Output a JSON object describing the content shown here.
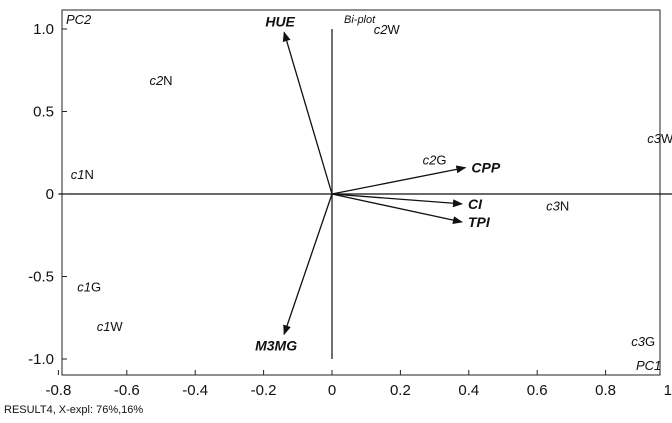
{
  "chart_data": {
    "type": "scatter",
    "title": "Bi-plot",
    "xlabel": "PC1",
    "ylabel": "PC2",
    "xlim": [
      -0.9,
      1.02
    ],
    "ylim": [
      -1.1,
      1.07
    ],
    "x_ticks": [
      -0.8,
      -0.6,
      -0.4,
      -0.2,
      0,
      0.2,
      0.4,
      0.6,
      0.8,
      1.0
    ],
    "x_tick_labels": [
      "-0.8",
      "-0.6",
      "-0.4",
      "-0.2",
      "0",
      "0.2",
      "0.4",
      "0.6",
      "0.8",
      "1.0"
    ],
    "y_ticks": [
      1.0,
      0.5,
      0,
      -0.5,
      -1.0
    ],
    "y_tick_labels": [
      "1.0",
      "0.5",
      "0",
      "-0.5",
      "-1.0"
    ],
    "grid": false,
    "footer": "RESULT4, X-expl: 76%,16%",
    "observations": [
      {
        "prefix": "c2",
        "suffix": "W",
        "x": 0.16,
        "y": 1.0
      },
      {
        "prefix": "c2",
        "suffix": "N",
        "x": -0.5,
        "y": 0.69
      },
      {
        "prefix": "c1",
        "suffix": "N",
        "x": -0.73,
        "y": 0.12
      },
      {
        "prefix": "c2",
        "suffix": "G",
        "x": 0.3,
        "y": 0.21
      },
      {
        "prefix": "c3",
        "suffix": "W",
        "x": 0.96,
        "y": 0.34
      },
      {
        "prefix": "c3",
        "suffix": "N",
        "x": 0.66,
        "y": -0.07
      },
      {
        "prefix": "c1",
        "suffix": "G",
        "x": -0.71,
        "y": -0.56
      },
      {
        "prefix": "c1",
        "suffix": "W",
        "x": -0.65,
        "y": -0.8
      },
      {
        "prefix": "c3",
        "suffix": "G",
        "x": 0.91,
        "y": -0.89
      }
    ],
    "loadings": [
      {
        "name": "HUE",
        "x": -0.14,
        "y": 0.98
      },
      {
        "name": "CPP",
        "x": 0.39,
        "y": 0.16
      },
      {
        "name": "CI",
        "x": 0.38,
        "y": -0.06
      },
      {
        "name": "TPI",
        "x": 0.38,
        "y": -0.17
      },
      {
        "name": "M3MG",
        "x": -0.14,
        "y": -0.85
      }
    ]
  }
}
